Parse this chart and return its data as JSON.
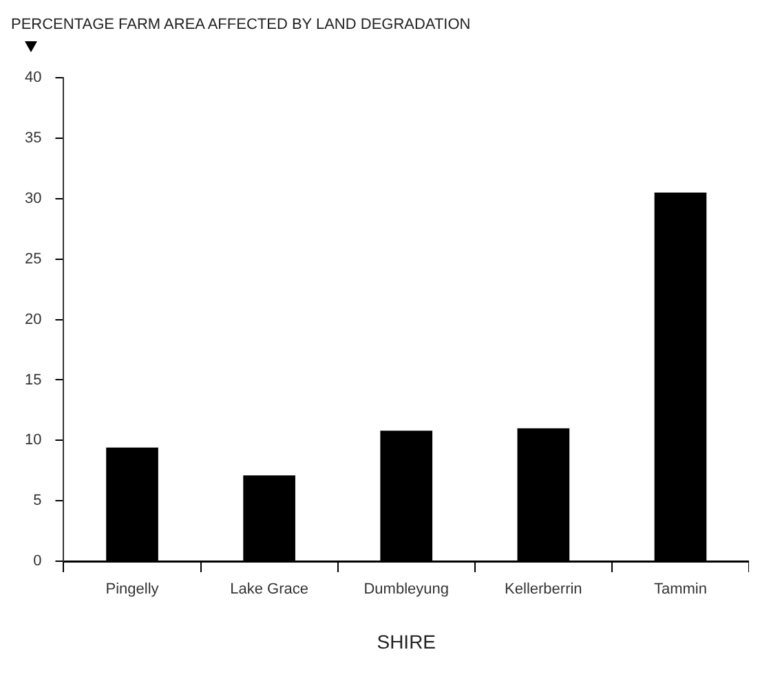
{
  "chart_data": {
    "type": "bar",
    "ylabel": "PERCENTAGE FARM AREA AFFECTED BY LAND DEGRADATION",
    "xlabel": "SHIRE",
    "categories": [
      "Pingelly",
      "Lake Grace",
      "Dumbleyung",
      "Kellerberrin",
      "Tammin"
    ],
    "values": [
      9.4,
      7.1,
      10.8,
      11.0,
      30.5
    ],
    "color": "#000000",
    "ylim": [
      0,
      40
    ],
    "yticks": [
      0,
      5,
      10,
      15,
      20,
      25,
      30,
      35,
      40
    ],
    "grid": false,
    "legend": false
  }
}
